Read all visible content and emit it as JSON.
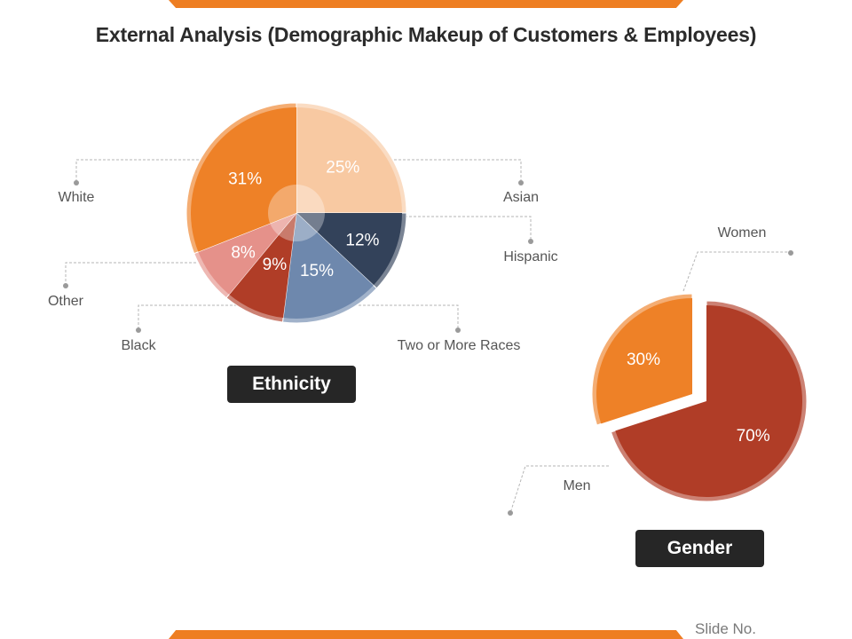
{
  "title": "External Analysis (Demographic Makeup of Customers & Employees)",
  "footer": {
    "slide_no": "Slide No."
  },
  "chart_data": [
    {
      "type": "pie",
      "caption": "Ethnicity",
      "slices": [
        {
          "label": "Asian",
          "value": 25,
          "display": "25%",
          "color": "#f8c9a2"
        },
        {
          "label": "Hispanic",
          "value": 12,
          "display": "12%",
          "color": "#33425a"
        },
        {
          "label": "Two or More Races",
          "value": 15,
          "display": "15%",
          "color": "#6e88ad"
        },
        {
          "label": "Black",
          "value": 9,
          "display": "9%",
          "color": "#b03d27"
        },
        {
          "label": "Other",
          "value": 8,
          "display": "8%",
          "color": "#e5918a"
        },
        {
          "label": "White",
          "value": 31,
          "display": "31%",
          "color": "#ee8127"
        }
      ]
    },
    {
      "type": "pie",
      "caption": "Gender",
      "slices": [
        {
          "label": "Men",
          "value": 70,
          "display": "70%",
          "color": "#b03d27"
        },
        {
          "label": "Women",
          "value": 30,
          "display": "30%",
          "color": "#ee8127",
          "exploded": true
        }
      ]
    }
  ]
}
